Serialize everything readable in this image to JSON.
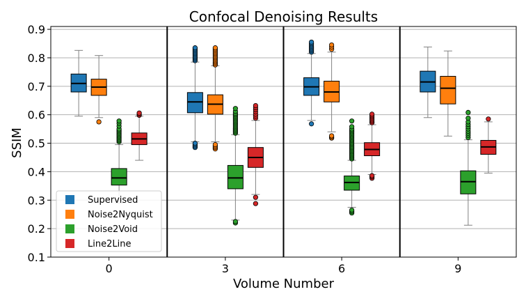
{
  "chart_data": {
    "type": "box",
    "title": "Confocal Denoising Results",
    "xlabel": "Volume Number",
    "ylabel": "SSIM",
    "ylim": [
      0.1,
      0.91
    ],
    "yticks": [
      "0.1",
      "0.2",
      "0.3",
      "0.4",
      "0.5",
      "0.6",
      "0.7",
      "0.8",
      "0.9"
    ],
    "categories": [
      "0",
      "3",
      "6",
      "9"
    ],
    "grid": "horizontal",
    "legend_position": "lower-left",
    "series": [
      {
        "name": "Supervised",
        "color": "#1f77b4",
        "boxes": [
          {
            "whisker_low": 0.595,
            "q1": 0.68,
            "median": 0.71,
            "q3": 0.743,
            "whisker_high": 0.826,
            "outliers": []
          },
          {
            "whisker_low": 0.505,
            "q1": 0.607,
            "median": 0.645,
            "q3": 0.678,
            "whisker_high": 0.785,
            "outliers": [
              0.485,
              0.49,
              0.495,
              0.5,
              0.79,
              0.795,
              0.8,
              0.805,
              0.81,
              0.815,
              0.82,
              0.825,
              0.83,
              0.835
            ]
          },
          {
            "whisker_low": 0.58,
            "q1": 0.668,
            "median": 0.698,
            "q3": 0.73,
            "whisker_high": 0.815,
            "outliers": [
              0.568,
              0.82,
              0.825,
              0.83,
              0.835,
              0.84,
              0.845,
              0.85,
              0.855
            ]
          },
          {
            "whisker_low": 0.59,
            "q1": 0.68,
            "median": 0.715,
            "q3": 0.753,
            "whisker_high": 0.838,
            "outliers": []
          }
        ]
      },
      {
        "name": "Noise2Nyquist",
        "color": "#ff7f0e",
        "boxes": [
          {
            "whisker_low": 0.59,
            "q1": 0.668,
            "median": 0.697,
            "q3": 0.725,
            "whisker_high": 0.808,
            "outliers": [
              0.575
            ]
          },
          {
            "whisker_low": 0.505,
            "q1": 0.602,
            "median": 0.637,
            "q3": 0.67,
            "whisker_high": 0.772,
            "outliers": [
              0.48,
              0.485,
              0.49,
              0.495,
              0.775,
              0.78,
              0.785,
              0.79,
              0.795,
              0.8,
              0.805,
              0.81,
              0.815,
              0.82,
              0.825,
              0.83,
              0.835
            ]
          },
          {
            "whisker_low": 0.54,
            "q1": 0.645,
            "median": 0.68,
            "q3": 0.718,
            "whisker_high": 0.82,
            "outliers": [
              0.518,
              0.522,
              0.526,
              0.83,
              0.838,
              0.845
            ]
          },
          {
            "whisker_low": 0.525,
            "q1": 0.638,
            "median": 0.693,
            "q3": 0.735,
            "whisker_high": 0.824,
            "outliers": []
          }
        ]
      },
      {
        "name": "Noise2Void",
        "color": "#2ca02c",
        "boxes": [
          {
            "whisker_low": 0.29,
            "q1": 0.353,
            "median": 0.378,
            "q3": 0.411,
            "whisker_high": 0.495,
            "outliers": [
              0.505,
              0.51,
              0.515,
              0.52,
              0.525,
              0.53,
              0.535,
              0.54,
              0.545,
              0.55,
              0.56,
              0.57,
              0.578
            ]
          },
          {
            "whisker_low": 0.23,
            "q1": 0.34,
            "median": 0.378,
            "q3": 0.422,
            "whisker_high": 0.53,
            "outliers": [
              0.22,
              0.225,
              0.535,
              0.54,
              0.545,
              0.55,
              0.555,
              0.56,
              0.565,
              0.57,
              0.575,
              0.58,
              0.585,
              0.59,
              0.595,
              0.6,
              0.605,
              0.612,
              0.622
            ]
          },
          {
            "whisker_low": 0.275,
            "q1": 0.335,
            "median": 0.362,
            "q3": 0.385,
            "whisker_high": 0.44,
            "outliers": [
              0.255,
              0.26,
              0.265,
              0.445,
              0.45,
              0.455,
              0.46,
              0.465,
              0.47,
              0.475,
              0.48,
              0.485,
              0.49,
              0.495,
              0.5,
              0.505,
              0.51,
              0.515,
              0.52,
              0.525,
              0.53,
              0.535,
              0.54,
              0.545,
              0.55,
              0.558,
              0.578
            ]
          },
          {
            "whisker_low": 0.212,
            "q1": 0.322,
            "median": 0.365,
            "q3": 0.403,
            "whisker_high": 0.512,
            "outliers": [
              0.52,
              0.528,
              0.535,
              0.542,
              0.55,
              0.558,
              0.566,
              0.575,
              0.588,
              0.608
            ]
          }
        ]
      },
      {
        "name": "Line2Line",
        "color": "#d62728",
        "boxes": [
          {
            "whisker_low": 0.44,
            "q1": 0.495,
            "median": 0.515,
            "q3": 0.536,
            "whisker_high": 0.595,
            "outliers": [
              0.598,
              0.602,
              0.606
            ]
          },
          {
            "whisker_low": 0.32,
            "q1": 0.415,
            "median": 0.45,
            "q3": 0.485,
            "whisker_high": 0.58,
            "outliers": [
              0.288,
              0.31,
              0.588,
              0.595,
              0.602,
              0.61,
              0.618,
              0.625,
              0.632
            ]
          },
          {
            "whisker_low": 0.39,
            "q1": 0.456,
            "median": 0.478,
            "q3": 0.502,
            "whisker_high": 0.565,
            "outliers": [
              0.377,
              0.382,
              0.386,
              0.572,
              0.577,
              0.582,
              0.587,
              0.592,
              0.597,
              0.602
            ]
          },
          {
            "whisker_low": 0.395,
            "q1": 0.461,
            "median": 0.487,
            "q3": 0.51,
            "whisker_high": 0.575,
            "outliers": [
              0.585
            ]
          }
        ]
      }
    ]
  }
}
